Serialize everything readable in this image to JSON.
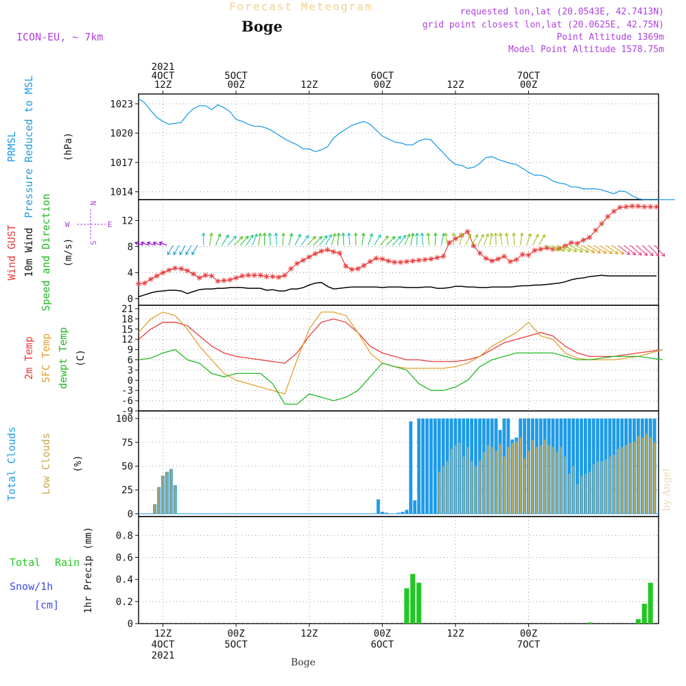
{
  "header": {
    "subtitle": "Forecast Meteogram",
    "station": "Boge",
    "model": "ICON-EU, ~ 7km",
    "requested": "requested lon,lat (20.0543E, 42.7413N)",
    "grid_point": "grid point closest lon,lat (20.0625E, 42.75N)",
    "point_altitude": "Point Altitude 1369m",
    "model_altitude": "Model Point Altitude 1578.75m",
    "footer_station": "Boge",
    "watermark": "by Angel"
  },
  "time_axis": {
    "top_ticks": [
      {
        "lines": [
          "2021",
          "4OCT",
          "12Z"
        ]
      },
      {
        "lines": [
          "5OCT",
          "00Z"
        ]
      },
      {
        "lines": [
          "12Z"
        ]
      },
      {
        "lines": [
          "6OCT",
          "00Z"
        ]
      },
      {
        "lines": [
          "12Z"
        ]
      },
      {
        "lines": [
          "7OCT",
          "00Z"
        ]
      }
    ],
    "bottom_ticks": [
      {
        "lines": [
          "12Z",
          "4OCT",
          "2021"
        ]
      },
      {
        "lines": [
          "00Z",
          "5OCT"
        ]
      },
      {
        "lines": [
          "12Z"
        ]
      },
      {
        "lines": [
          "00Z",
          "6OCT"
        ]
      },
      {
        "lines": [
          "12Z"
        ]
      },
      {
        "lines": [
          "00Z",
          "7OCT"
        ]
      }
    ]
  },
  "colors": {
    "pressure": "#1e9be6",
    "gust": "#e83a3a",
    "wind10m": "#000000",
    "temp2m": "#e83a3a",
    "sfctemp": "#e0a030",
    "dewpt": "#22b822",
    "total_clouds": "#1e9be6",
    "low_clouds": "#c8a850",
    "rain": "#22c822",
    "snow": "#3a4ae8",
    "header_purple": "#b040e0",
    "header_orange": "#f0d090"
  },
  "chart_data": [
    {
      "type": "line",
      "panel": "pressure",
      "ylabel_lines": [
        "PRMSL",
        "Pressure Reduced to MSL",
        "(hPa)"
      ],
      "yticks": [
        1014,
        1017,
        1020,
        1023
      ],
      "ylim": [
        1013.2,
        1024
      ],
      "x_hours": [
        0,
        3,
        6,
        9,
        12,
        15,
        18,
        21,
        24,
        27,
        30,
        33,
        36,
        39,
        42,
        45,
        48,
        51,
        54,
        57,
        60,
        63,
        66,
        69,
        72,
        75,
        78,
        81,
        84,
        87,
        90,
        93,
        96,
        99,
        102,
        105,
        108,
        111,
        114,
        117,
        120
      ],
      "series": [
        {
          "values": [
            1023.5,
            1023.1,
            1022.3,
            1021.6,
            1021.2,
            1020.9,
            1021.0,
            1021.1,
            1021.9,
            1022.5,
            1022.8,
            1022.8,
            1022.4,
            1022.9,
            1022.6,
            1022.2,
            1021.4,
            1021.2,
            1020.9,
            1020.7,
            1020.7,
            1020.5,
            1020.2,
            1019.8,
            1019.4,
            1019.1,
            1018.8,
            1018.4,
            1018.4,
            1018.1,
            1018.3,
            1018.6,
            1019.5,
            1020.0,
            1020.4,
            1020.8,
            1021.0,
            1021.2,
            1020.9,
            1020.3,
            1019.7
          ]
        }
      ],
      "x_hours_b": [
        120,
        123,
        126,
        129,
        132,
        135,
        138,
        141,
        144,
        147,
        150,
        153,
        156,
        159,
        162,
        165,
        168,
        171,
        174,
        177,
        180,
        183,
        186,
        189,
        192,
        195,
        198,
        201,
        204,
        207,
        210,
        213,
        216,
        219,
        222,
        225,
        228,
        231,
        234,
        237,
        240,
        243,
        246,
        249,
        252,
        255,
        258,
        261,
        264
      ],
      "series_b": [
        {
          "values": [
            1019.7,
            1019.4,
            1019.1,
            1019.0,
            1018.8,
            1018.8,
            1019.2,
            1019.4,
            1019.3,
            1018.6,
            1018.0,
            1017.3,
            1016.8,
            1016.7,
            1016.4,
            1016.5,
            1016.9,
            1017.5,
            1017.6,
            1017.3,
            1017.1,
            1016.9,
            1016.8,
            1016.4,
            1016.0,
            1015.7,
            1015.7,
            1015.5,
            1015.1,
            1014.9,
            1014.8,
            1014.5,
            1014.5,
            1014.3,
            1014.3,
            1014.3,
            1014.2,
            1014.0,
            1013.8,
            1014.1,
            1014.0,
            1013.6,
            1013.3,
            1013.2,
            1013.2,
            1013.2,
            1013.2,
            1013.2,
            1013.2
          ]
        }
      ]
    },
    {
      "type": "line",
      "panel": "wind",
      "ylabel_lines": [
        "Wind GUST",
        "10m Wind",
        "Speed and Direction",
        "(m/s)"
      ],
      "compass": [
        "W",
        "N",
        "E",
        "S"
      ],
      "yticks": [
        0,
        4,
        8,
        12
      ],
      "ylim": [
        -1,
        15.2
      ],
      "x_hours": [
        0,
        3,
        6,
        9,
        12,
        15,
        18,
        21,
        24,
        27,
        30,
        33,
        36,
        39,
        42,
        45,
        48,
        51,
        54,
        57,
        60,
        63,
        66,
        69,
        72,
        75,
        78,
        81,
        84,
        87,
        90,
        93,
        96,
        99,
        102,
        105,
        108,
        111,
        114,
        117,
        120,
        123,
        126,
        129,
        132,
        135,
        138,
        141,
        144,
        147,
        150,
        153,
        156,
        159,
        162,
        165,
        168,
        171,
        174,
        177,
        180,
        183,
        186,
        189,
        192,
        195,
        198,
        201,
        204,
        207,
        210,
        213,
        216,
        219,
        222,
        225,
        228,
        231,
        234,
        237,
        240,
        243,
        246,
        249,
        252,
        255
      ],
      "series": [
        {
          "name": "Wind GUST",
          "values": [
            2.3,
            2.4,
            3.0,
            3.5,
            4.0,
            4.4,
            4.7,
            4.6,
            4.3,
            3.8,
            3.2,
            3.6,
            3.5,
            2.7,
            2.8,
            2.9,
            3.2,
            3.5,
            3.6,
            3.6,
            3.6,
            3.4,
            3.4,
            3.3,
            3.6,
            4.6,
            5.4,
            5.9,
            6.4,
            6.9,
            7.3,
            7.5,
            7.2,
            7.0,
            5.0,
            4.5,
            4.6,
            5.1,
            5.7,
            6.2,
            6.1,
            5.8,
            5.6,
            5.6,
            5.7,
            5.8,
            5.9,
            6.0,
            6.1,
            6.3,
            6.5,
            8.6,
            9.2,
            9.7,
            10.3,
            8.1,
            7.0,
            6.2,
            5.8,
            6.1,
            6.5,
            5.7,
            6.0,
            6.8,
            6.7,
            7.4,
            7.6,
            7.8,
            7.6,
            7.7,
            8.1,
            8.6,
            8.5,
            9.0,
            9.4,
            10.5,
            11.5,
            12.6,
            13.4,
            14.0,
            14.1,
            14.2,
            14.2,
            14.1,
            14.1,
            14.1
          ]
        },
        {
          "name": "10m Wind",
          "values": [
            0.3,
            0.6,
            0.9,
            1.1,
            1.2,
            1.3,
            1.3,
            1.2,
            0.8,
            1.1,
            1.4,
            1.5,
            1.5,
            1.6,
            1.6,
            1.7,
            1.7,
            1.7,
            1.6,
            1.6,
            1.6,
            1.3,
            1.4,
            1.2,
            1.2,
            1.5,
            1.5,
            1.7,
            2.1,
            2.4,
            2.5,
            1.9,
            1.5,
            1.6,
            1.7,
            1.8,
            1.8,
            1.8,
            1.8,
            1.8,
            1.7,
            1.8,
            1.8,
            1.8,
            1.7,
            1.7,
            1.7,
            1.8,
            1.8,
            1.6,
            1.6,
            1.7,
            1.9,
            1.9,
            1.8,
            1.8,
            1.7,
            1.7,
            1.8,
            1.8,
            1.8,
            1.8,
            1.9,
            2.0,
            2.0,
            2.1,
            2.1,
            2.2,
            2.3,
            2.4,
            2.6,
            2.9,
            3.1,
            3.2,
            3.4,
            3.5,
            3.6,
            3.5,
            3.5,
            3.5,
            3.5,
            3.5,
            3.5,
            3.5,
            3.5,
            3.5
          ]
        }
      ]
    },
    {
      "type": "line",
      "panel": "temperature",
      "ylabel_lines": [
        "2m Temp",
        "SFC Temp",
        "dewpt Temp",
        "(C)"
      ],
      "yticks": [
        -9,
        -6,
        -3,
        0,
        3,
        6,
        9,
        12,
        15,
        18,
        21
      ],
      "ylim": [
        -9,
        22
      ],
      "x_hours": [
        0,
        6,
        12,
        18,
        24,
        30,
        36,
        42,
        48,
        54,
        60,
        66,
        72,
        78,
        84,
        90,
        96,
        102,
        108,
        114,
        120,
        126,
        132,
        138,
        144,
        150,
        156,
        162,
        168,
        174,
        180,
        186,
        192,
        198,
        204,
        210,
        216,
        222,
        228,
        234,
        240,
        246,
        252,
        258
      ],
      "series": [
        {
          "name": "2m Temp",
          "values": [
            12,
            15,
            17,
            17,
            16,
            13,
            10,
            8,
            7,
            6.5,
            6,
            5.5,
            5,
            8,
            13,
            17,
            18,
            17,
            14,
            10,
            8,
            7,
            6,
            6,
            5.5,
            5.5,
            5.5,
            6,
            7,
            9,
            11,
            12,
            13,
            14,
            13,
            10,
            8,
            7,
            7,
            7,
            7.5,
            8,
            8.5,
            9
          ]
        },
        {
          "name": "SFC Temp",
          "values": [
            14,
            18,
            20,
            19,
            15,
            10,
            6,
            2,
            0,
            -1,
            -2,
            -3,
            -4,
            6,
            15,
            20,
            20,
            19,
            14,
            8,
            5,
            4,
            3.5,
            3.5,
            3.5,
            3.5,
            4,
            5,
            7,
            10,
            12,
            14,
            17,
            13,
            12,
            8,
            6.5,
            6,
            6,
            6,
            6.5,
            7,
            8,
            9
          ]
        },
        {
          "name": "dewpt Temp",
          "values": [
            6,
            6.5,
            8,
            9,
            6,
            5,
            2,
            1,
            2,
            2,
            2,
            -1,
            -7,
            -7,
            -4,
            -5,
            -6,
            -5,
            -3,
            1,
            5,
            4,
            3,
            -1,
            -3,
            -3,
            -2,
            0,
            4,
            6,
            7,
            8,
            8,
            8,
            8,
            7,
            6,
            6,
            6.5,
            7,
            7,
            7,
            6.5,
            6
          ]
        }
      ]
    },
    {
      "type": "bar",
      "panel": "clouds",
      "ylabel_lines": [
        "Total Clouds",
        "Low Clouds",
        "(%)"
      ],
      "yticks": [
        0,
        25,
        50,
        75,
        100
      ],
      "ylim": [
        -3,
        108
      ],
      "x_hours": [
        6,
        8,
        10,
        12,
        14,
        16,
        18,
        20,
        22,
        24,
        26,
        28,
        30,
        32,
        34,
        36,
        38,
        40,
        42,
        44,
        46,
        48,
        50,
        52,
        54,
        56,
        58,
        60,
        62,
        64,
        66,
        68,
        70,
        72,
        74,
        76,
        78,
        80,
        82,
        84,
        86,
        88,
        90,
        92,
        94,
        96,
        98,
        100,
        102,
        104,
        106,
        108,
        110,
        112,
        114,
        116,
        118,
        120,
        122,
        124,
        126,
        128,
        130,
        132,
        134,
        136,
        138,
        140,
        142,
        144,
        146,
        148,
        150,
        152,
        154,
        156,
        158,
        160,
        162,
        164,
        166,
        168,
        170,
        172,
        174,
        176,
        178,
        180,
        182,
        184,
        186,
        188,
        190,
        192,
        194,
        196,
        198,
        200,
        202,
        204,
        206,
        208,
        210,
        212,
        214,
        216,
        218,
        220,
        222,
        224,
        226,
        228,
        230,
        232,
        234,
        236,
        238,
        240,
        242,
        244,
        246,
        248,
        250,
        252,
        254,
        256
      ],
      "series": [
        {
          "name": "Total Clouds",
          "values": [
            0,
            10,
            28,
            40,
            44,
            47,
            30,
            0,
            0,
            0,
            0,
            0,
            0,
            0,
            0,
            0,
            0,
            0,
            0,
            0,
            0,
            0,
            0,
            0,
            0,
            0,
            0,
            0,
            0,
            0,
            0,
            0,
            0,
            0,
            0,
            0,
            0,
            0,
            0,
            0,
            0,
            0,
            0,
            0,
            0,
            0,
            0,
            0,
            0,
            0,
            0,
            0,
            0,
            0,
            0,
            0,
            15,
            2,
            1,
            0,
            0,
            1,
            2,
            4,
            97,
            14,
            100,
            100,
            100,
            100,
            100,
            100,
            100,
            100,
            100,
            100,
            100,
            100,
            100,
            100,
            100,
            100,
            100,
            100,
            100,
            100,
            88,
            100,
            100,
            78,
            80,
            100,
            100,
            100,
            100,
            100,
            100,
            100,
            100,
            100,
            100,
            100,
            100,
            100,
            100,
            100,
            100,
            100,
            100,
            100,
            100,
            100,
            100,
            100,
            100,
            100,
            100,
            100,
            100,
            100,
            100,
            100,
            100,
            100,
            100
          ]
        },
        {
          "name": "Low Clouds",
          "values": [
            0,
            10,
            28,
            40,
            44,
            47,
            30,
            0,
            0,
            0,
            0,
            0,
            0,
            0,
            0,
            0,
            0,
            0,
            0,
            0,
            0,
            0,
            0,
            0,
            0,
            0,
            0,
            0,
            0,
            0,
            0,
            0,
            0,
            0,
            0,
            0,
            0,
            0,
            0,
            0,
            0,
            0,
            0,
            0,
            0,
            0,
            0,
            0,
            0,
            0,
            0,
            0,
            0,
            0,
            0,
            0,
            0,
            0,
            0,
            0,
            0,
            0,
            0,
            0,
            0,
            0,
            0,
            0,
            0,
            0,
            0,
            44,
            50,
            55,
            68,
            72,
            75,
            60,
            70,
            55,
            50,
            56,
            65,
            72,
            70,
            66,
            73,
            60,
            70,
            74,
            76,
            80,
            58,
            66,
            77,
            70,
            72,
            78,
            72,
            70,
            65,
            70,
            60,
            42,
            50,
            31,
            40,
            42,
            44,
            52,
            55,
            55,
            57,
            60,
            62,
            68,
            70,
            72,
            74,
            76,
            82,
            80,
            84,
            80,
            75
          ]
        }
      ]
    },
    {
      "type": "bar",
      "panel": "precip",
      "ylabel_lines": [
        "1hr Precip (mm)"
      ],
      "legend_left": [
        "Total",
        "Rain",
        "Snow/1h",
        "[cm]"
      ],
      "yticks": [
        0,
        0.2,
        0.4,
        0.6,
        0.8
      ],
      "ylim": [
        0,
        0.97
      ],
      "x_hours": [
        132,
        135,
        138,
        222,
        246,
        249,
        252
      ],
      "series": [
        {
          "name": "Total Rain",
          "values": [
            0.32,
            0.45,
            0.37,
            0.01,
            0.04,
            0.18,
            0.37
          ]
        }
      ]
    }
  ]
}
